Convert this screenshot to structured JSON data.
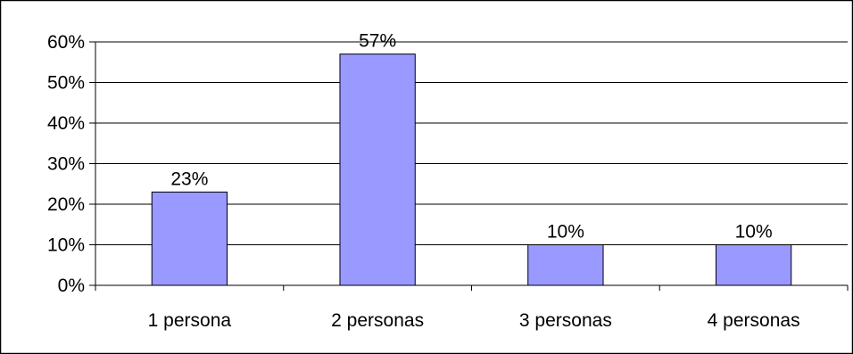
{
  "chart_data": {
    "type": "bar",
    "categories": [
      "1 persona",
      "2 personas",
      "3 personas",
      "4 personas"
    ],
    "values": [
      23,
      57,
      10,
      10
    ],
    "data_labels": [
      "23%",
      "57%",
      "10%",
      "10%"
    ],
    "y_ticks": [
      "0%",
      "10%",
      "20%",
      "30%",
      "40%",
      "50%",
      "60%"
    ],
    "y_tick_values": [
      0,
      10,
      20,
      30,
      40,
      50,
      60
    ],
    "ylim": [
      0,
      60
    ],
    "title": "",
    "xlabel": "",
    "ylabel": "",
    "grid": true,
    "legend": "none",
    "colors": {
      "bar_fill": "#9999ff",
      "bar_stroke": "#000000",
      "grid": "#000000",
      "axis": "#000000",
      "frame": "#000000",
      "background": "#ffffff"
    }
  }
}
